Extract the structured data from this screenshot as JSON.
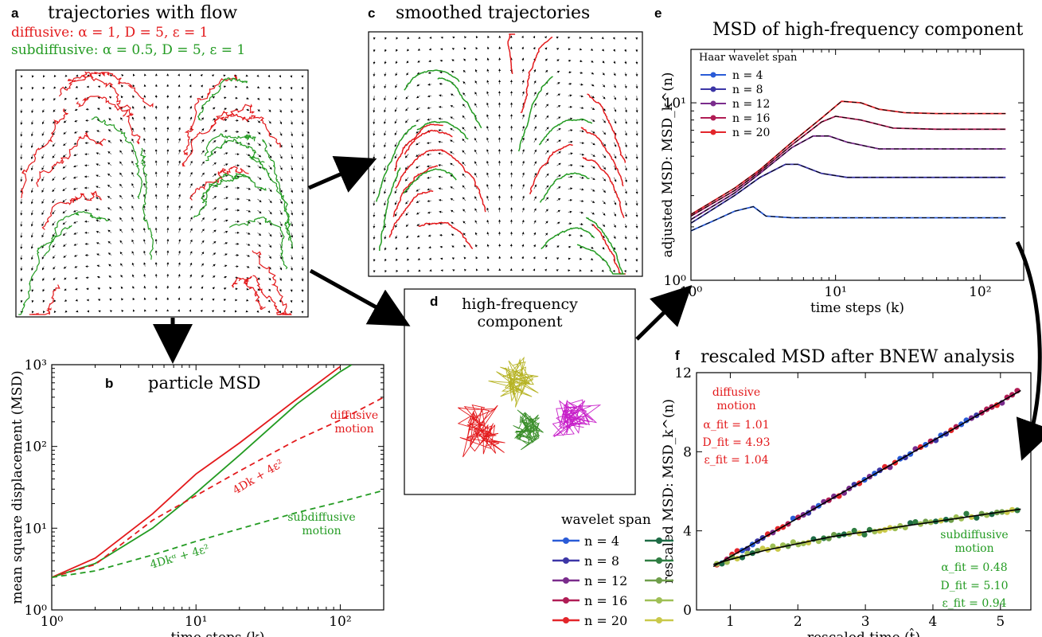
{
  "colors": {
    "red": "#e31a1c",
    "green": "#239b22",
    "black": "#000000",
    "wavelet_span_primary": [
      "#2a5bd7",
      "#3c36a6",
      "#7a2c8c",
      "#b01d55",
      "#e3262b"
    ],
    "wavelet_span_secondary": [
      "#1d6b45",
      "#2f7d42",
      "#6f9e4a",
      "#9fbf55",
      "#c9c94a"
    ],
    "d_colors": [
      "#e31a1c",
      "#3a8e2a",
      "#c71fc9",
      "#b6b324"
    ]
  },
  "panels": {
    "a": {
      "label": "a",
      "title": "trajectories with flow",
      "legend_diffusive": "diffusive: α = 1, D = 5, ε = 1",
      "legend_subdiffusive": "subdiffusive: α = 0.5, D = 5, ε = 1"
    },
    "c": {
      "label": "c",
      "title": "smoothed trajectories"
    },
    "d": {
      "label": "d",
      "title_line1": "high-frequency",
      "title_line2": "component"
    },
    "b": {
      "label": "b",
      "title": "particle MSD",
      "annot_diffusive_1": "diffusive",
      "annot_diffusive_2": "motion",
      "annot_sub_1": "subdiffusive",
      "annot_sub_2": "motion",
      "formula_diffusive": "4Dk + 4ε²",
      "formula_sub": "4Dkᵅ + 4ε²"
    },
    "e": {
      "label": "e",
      "title": "MSD of high-frequency component",
      "legend_title": "Haar wavelet span"
    },
    "f": {
      "label": "f",
      "title": "rescaled MSD after BNEW analysis",
      "diff_1": "diffusive",
      "diff_2": "motion",
      "diff_alpha": "α_fit = 1.01",
      "diff_D": "D_fit = 4.93",
      "diff_eps": "ε_fit = 1.04",
      "sub_1": "subdiffusive",
      "sub_2": "motion",
      "sub_alpha": "α_fit = 0.48",
      "sub_D": "D_fit = 5.10",
      "sub_eps": "ε_fit = 0.94"
    },
    "wavelet_legend": {
      "title": "wavelet span"
    }
  },
  "chart_data": [
    {
      "id": "b",
      "type": "line",
      "title": "particle MSD",
      "xlabel": "time steps (k)",
      "ylabel": "mean square displacement (MSD)",
      "xscale": "log",
      "yscale": "log",
      "xlim": [
        1,
        200
      ],
      "ylim": [
        1,
        1000
      ],
      "xticks": [
        {
          "v": 1,
          "label": "10⁰"
        },
        {
          "v": 10,
          "label": "10¹"
        },
        {
          "v": 100,
          "label": "10²"
        }
      ],
      "yticks": [
        {
          "v": 1,
          "label": "10⁰"
        },
        {
          "v": 10,
          "label": "10¹"
        },
        {
          "v": 100,
          "label": "10²"
        },
        {
          "v": 1000,
          "label": "10³"
        }
      ],
      "series": [
        {
          "color": "red",
          "style": "solid",
          "x": [
            1,
            2,
            5,
            10,
            20,
            50,
            100
          ],
          "y": [
            2.5,
            4.3,
            15,
            46,
            110,
            380,
            950
          ]
        },
        {
          "color": "green",
          "style": "solid",
          "x": [
            1,
            2,
            5,
            10,
            20,
            50,
            100,
            120
          ],
          "y": [
            2.5,
            3.7,
            10,
            27,
            78,
            330,
            820,
            1000
          ]
        },
        {
          "color": "red",
          "style": "dashed",
          "x": [
            1,
            2,
            5,
            10,
            20,
            50,
            100,
            200
          ],
          "y": [
            2.5,
            3.6,
            12.5,
            25,
            50,
            120,
            210,
            400
          ]
        },
        {
          "color": "green",
          "style": "dashed",
          "x": [
            1,
            2,
            5,
            10,
            20,
            50,
            100,
            200
          ],
          "y": [
            2.5,
            3.0,
            4.7,
            6.9,
            9.8,
            15.5,
            21,
            29
          ]
        }
      ]
    },
    {
      "id": "e",
      "type": "line",
      "title": "MSD of high-frequency component",
      "xlabel": "time steps (k)",
      "ylabel": "adjusted MSD: MSD_k^(n)",
      "xscale": "log",
      "yscale": "log",
      "xlim": [
        1,
        200
      ],
      "ylim": [
        1,
        20
      ],
      "xticks": [
        {
          "v": 1,
          "label": "10⁰"
        },
        {
          "v": 10,
          "label": "10¹"
        },
        {
          "v": 100,
          "label": "10²"
        }
      ],
      "yticks": [
        {
          "v": 1,
          "label": "10⁰"
        },
        {
          "v": 10,
          "label": "10¹"
        }
      ],
      "series": [
        {
          "name": "n = 4",
          "color_index": 0,
          "x": [
            1,
            1.5,
            2,
            2.7,
            3.3,
            5,
            10,
            50,
            150
          ],
          "y": [
            1.9,
            2.2,
            2.45,
            2.6,
            2.3,
            2.25,
            2.25,
            2.25,
            2.25
          ]
        },
        {
          "name": "n = 8",
          "color_index": 1,
          "x": [
            1,
            2,
            3,
            4.5,
            5.5,
            8,
            12,
            50,
            150
          ],
          "y": [
            2.1,
            3.0,
            3.8,
            4.5,
            4.5,
            4.0,
            3.8,
            3.8,
            3.8
          ]
        },
        {
          "name": "n = 12",
          "color_index": 2,
          "x": [
            1,
            2,
            3,
            5,
            7,
            9,
            12,
            20,
            50,
            150
          ],
          "y": [
            2.2,
            3.1,
            4.0,
            5.6,
            6.5,
            6.5,
            6.0,
            5.5,
            5.5,
            5.5
          ]
        },
        {
          "name": "n = 16",
          "color_index": 3,
          "x": [
            1,
            2,
            3,
            5,
            8,
            10,
            15,
            25,
            50,
            150
          ],
          "y": [
            2.3,
            3.2,
            4.1,
            5.8,
            7.8,
            8.4,
            8.0,
            7.2,
            7.1,
            7.1
          ]
        },
        {
          "name": "n = 20",
          "color_index": 4,
          "x": [
            1,
            2,
            3,
            5,
            8,
            11,
            15,
            20,
            30,
            50,
            150
          ],
          "y": [
            2.35,
            3.3,
            4.2,
            6.0,
            8.2,
            10.2,
            10.0,
            9.2,
            8.8,
            8.7,
            8.7
          ]
        }
      ]
    },
    {
      "id": "f",
      "type": "scatter",
      "title": "rescaled MSD after BNEW analysis",
      "xlabel": "rescaled time (t̂)",
      "ylabel": "rescaled MSD: MSD_k^(n)",
      "xlim": [
        0.5,
        5.45
      ],
      "ylim": [
        0,
        12
      ],
      "xticks": [
        {
          "v": 1,
          "label": "1"
        },
        {
          "v": 2,
          "label": "2"
        },
        {
          "v": 3,
          "label": "3"
        },
        {
          "v": 4,
          "label": "4"
        },
        {
          "v": 5,
          "label": "5"
        }
      ],
      "yticks": [
        {
          "v": 0,
          "label": "0"
        },
        {
          "v": 4,
          "label": "4"
        },
        {
          "v": 8,
          "label": "8"
        },
        {
          "v": 12,
          "label": "12"
        }
      ],
      "series": [
        {
          "name": "diffusive fit",
          "kind": "line",
          "x": [
            0.75,
            5.3
          ],
          "y": [
            2.2,
            11.1
          ]
        },
        {
          "name": "subdiffusive fit",
          "kind": "line",
          "x": [
            0.75,
            1.0,
            1.5,
            2.0,
            2.5,
            3.0,
            3.5,
            4.0,
            4.5,
            5.0,
            5.3
          ],
          "y": [
            2.3,
            2.55,
            3.0,
            3.35,
            3.7,
            3.95,
            4.2,
            4.45,
            4.7,
            4.95,
            5.1
          ]
        }
      ]
    }
  ],
  "wavelet_span": [
    {
      "label": "n = 4"
    },
    {
      "label": "n = 8"
    },
    {
      "label": "n = 12"
    },
    {
      "label": "n = 16"
    },
    {
      "label": "n = 20"
    }
  ]
}
